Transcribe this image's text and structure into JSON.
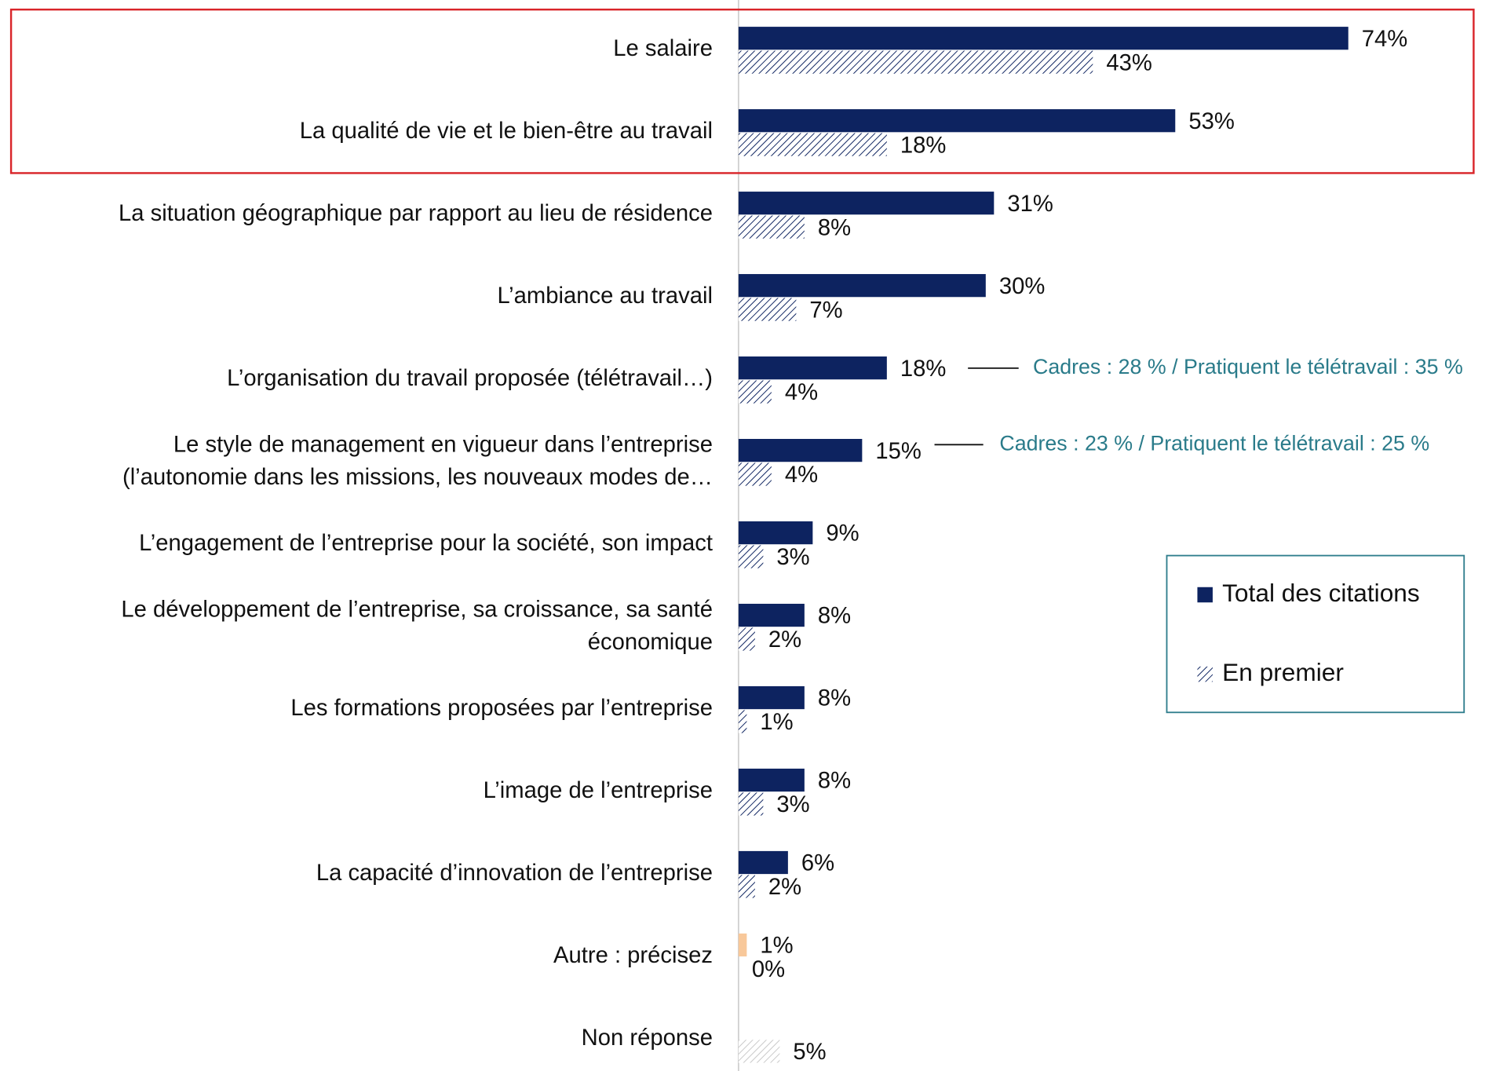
{
  "chart_data": {
    "type": "bar",
    "orientation": "horizontal",
    "categories": [
      "Le salaire",
      "La qualité de vie et le bien-être au travail",
      "La situation géographique par rapport au lieu de résidence",
      "L’ambiance au travail",
      "L’organisation du travail proposée (télétravail…)",
      "Le style de management en vigueur dans l’entreprise\n(l’autonomie dans les missions, les nouveaux modes de…",
      "L’engagement de l’entreprise pour la société, son impact",
      "Le développement de l’entreprise, sa croissance, sa santé\néconomique",
      "Les formations proposées par l’entreprise",
      "L’image de l’entreprise",
      "La capacité d’innovation de l’entreprise",
      "Autre : précisez",
      "Non réponse"
    ],
    "series": [
      {
        "name": "Total des citations",
        "color": "#0d2360",
        "pattern": "solid",
        "colors": [
          "#0d2360",
          "#0d2360",
          "#0d2360",
          "#0d2360",
          "#0d2360",
          "#0d2360",
          "#0d2360",
          "#0d2360",
          "#0d2360",
          "#0d2360",
          "#0d2360",
          "#f8c89a",
          null
        ],
        "values": [
          74,
          53,
          31,
          30,
          18,
          15,
          9,
          8,
          8,
          8,
          6,
          1,
          null
        ],
        "value_labels": [
          "74%",
          "53%",
          "31%",
          "30%",
          "18%",
          "15%",
          "9%",
          "8%",
          "8%",
          "8%",
          "6%",
          "1%",
          null
        ]
      },
      {
        "name": "En premier",
        "color": "#0d2360",
        "pattern": "hatch",
        "colors": [
          "#0d2360",
          "#0d2360",
          "#0d2360",
          "#0d2360",
          "#0d2360",
          "#0d2360",
          "#0d2360",
          "#0d2360",
          "#0d2360",
          "#0d2360",
          "#0d2360",
          "#0d2360",
          "#c8c8c8"
        ],
        "values": [
          43,
          18,
          8,
          7,
          4,
          4,
          3,
          2,
          1,
          3,
          2,
          0,
          5
        ],
        "value_labels": [
          "43%",
          "18%",
          "8%",
          "7%",
          "4%",
          "4%",
          "3%",
          "2%",
          "1%",
          "3%",
          "2%",
          "0%",
          "5%"
        ]
      }
    ],
    "annotations": [
      "Cadres : 28 % / Pratiquent le télétravail : 35 %",
      "Cadres : 23 % / Pratiquent le télétravail : 25 %"
    ]
  }
}
